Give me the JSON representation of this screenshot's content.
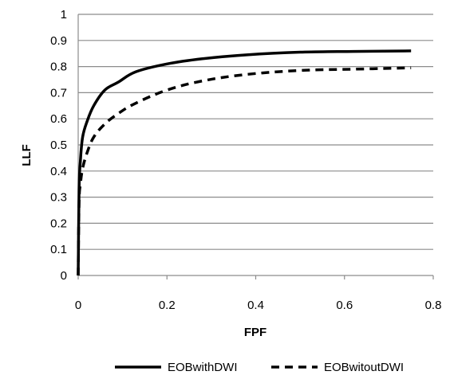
{
  "chart_data": {
    "type": "line",
    "xlabel": "FPF",
    "ylabel": "LLF",
    "xlim": [
      0,
      0.8
    ],
    "ylim": [
      0,
      1
    ],
    "x_ticks": [
      "0",
      "0.2",
      "0.4",
      "0.6",
      "0.8"
    ],
    "y_ticks": [
      "0",
      "0.1",
      "0.2",
      "0.3",
      "0.4",
      "0.5",
      "0.6",
      "0.7",
      "0.8",
      "0.9",
      "1"
    ],
    "grid": "horizontal",
    "legend_position": "bottom",
    "series": [
      {
        "name": "EOBwithDWI",
        "style": "solid",
        "color": "#000000",
        "x": [
          0,
          0.002,
          0.005,
          0.01,
          0.02,
          0.035,
          0.06,
          0.09,
          0.13,
          0.2,
          0.28,
          0.38,
          0.5,
          0.62,
          0.75
        ],
        "y": [
          0,
          0.33,
          0.44,
          0.53,
          0.59,
          0.65,
          0.71,
          0.74,
          0.78,
          0.81,
          0.83,
          0.845,
          0.855,
          0.858,
          0.86
        ]
      },
      {
        "name": "EOBwitoutDWI",
        "style": "dashed",
        "color": "#000000",
        "x": [
          0,
          0.002,
          0.005,
          0.01,
          0.02,
          0.035,
          0.06,
          0.09,
          0.13,
          0.2,
          0.28,
          0.38,
          0.5,
          0.62,
          0.75
        ],
        "y": [
          0,
          0.28,
          0.35,
          0.41,
          0.47,
          0.53,
          0.58,
          0.62,
          0.66,
          0.71,
          0.745,
          0.77,
          0.785,
          0.79,
          0.795
        ]
      }
    ]
  }
}
